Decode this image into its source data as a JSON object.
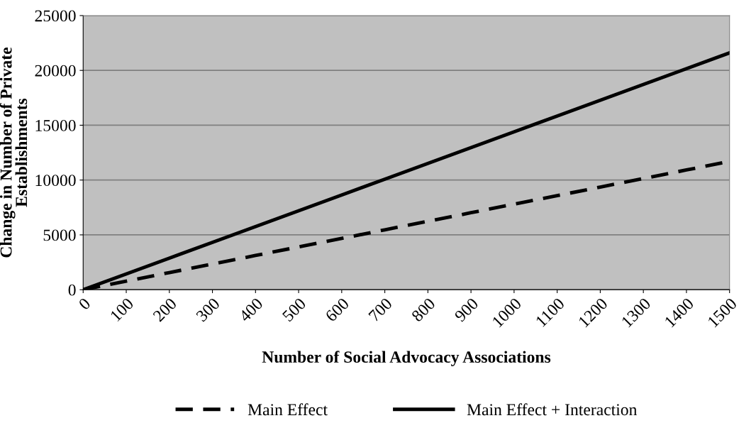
{
  "chart_data": {
    "type": "line",
    "xlabel": "Number of Social Advocacy Associations",
    "ylabel": "Change in Number of Private\nEstablishments",
    "x": [
      0,
      100,
      200,
      300,
      400,
      500,
      600,
      700,
      800,
      900,
      1000,
      1100,
      1200,
      1300,
      1400,
      1500
    ],
    "xlim": [
      0,
      1500
    ],
    "xticks": [
      0,
      100,
      200,
      300,
      400,
      500,
      600,
      700,
      800,
      900,
      1000,
      1100,
      1200,
      1300,
      1400,
      1500
    ],
    "ylim": [
      0,
      25000
    ],
    "yticks": [
      0,
      5000,
      10000,
      15000,
      20000,
      25000
    ],
    "grid": "y",
    "legend": "bottom",
    "marker": "none",
    "series": [
      {
        "name": "Main Effect",
        "color": "#000000",
        "line_style": "dashed",
        "values": [
          0,
          780,
          1560,
          2340,
          3120,
          3900,
          4680,
          5460,
          6240,
          7020,
          7800,
          8580,
          9360,
          10140,
          10920,
          11700
        ]
      },
      {
        "name": "Main Effect + Interaction",
        "color": "#000000",
        "line_style": "solid",
        "values": [
          0,
          1440,
          2880,
          4320,
          5760,
          7200,
          8640,
          10080,
          11520,
          12960,
          14400,
          15840,
          17280,
          18720,
          20160,
          21600
        ]
      }
    ]
  }
}
